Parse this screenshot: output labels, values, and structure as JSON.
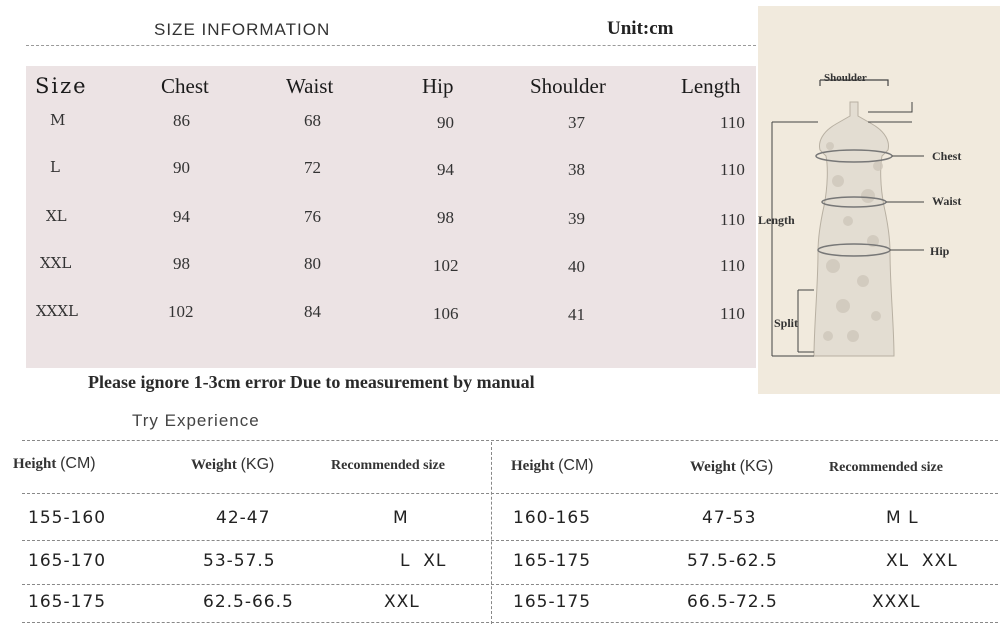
{
  "header": {
    "title": "SIZE INFORMATION",
    "unit": "Unit:cm"
  },
  "size_table": {
    "columns": [
      "Size",
      "Chest",
      "Waist",
      "Hip",
      "Shoulder",
      "Length"
    ],
    "rows": [
      [
        "M",
        "86",
        "68",
        "90",
        "37",
        "110"
      ],
      [
        "L",
        "90",
        "72",
        "94",
        "38",
        "110"
      ],
      [
        "XL",
        "94",
        "76",
        "98",
        "39",
        "110"
      ],
      [
        "XXL",
        "98",
        "80",
        "102",
        "40",
        "110"
      ],
      [
        "XXXL",
        "102",
        "84",
        "106",
        "41",
        "110"
      ]
    ]
  },
  "note": "Please ignore 1-3cm error Due to measurement by manual",
  "diagram": {
    "labels": {
      "shoulder": "Shoulder",
      "chest": "Chest",
      "waist": "Waist",
      "length": "Length",
      "hip": "Hip",
      "split": "Split"
    },
    "colors": {
      "background": "#f1eadd",
      "dress": "#e3ddd2",
      "pattern": "#cfc7bb"
    }
  },
  "try_experience": {
    "title": "Try Experience",
    "headers": {
      "height": "Height",
      "height_unit": "(CM)",
      "weight": "Weight",
      "weight_unit": "(KG)",
      "recommended": "Recommended size"
    },
    "left_rows": [
      [
        "155-160",
        "42-47",
        "M"
      ],
      [
        "165-170",
        "53-57.5",
        "L  XL"
      ],
      [
        "165-175",
        "62.5-66.5",
        "XXL"
      ]
    ],
    "right_rows": [
      [
        "160-165",
        "47-53",
        "M L"
      ],
      [
        "165-175",
        "57.5-62.5",
        "XL  XXL"
      ],
      [
        "165-175",
        "66.5-72.5",
        "XXXL"
      ]
    ]
  }
}
